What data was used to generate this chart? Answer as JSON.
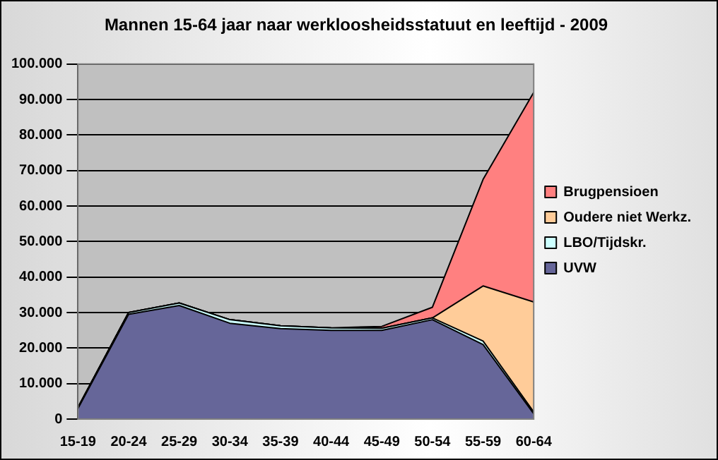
{
  "chart_data": {
    "type": "area",
    "title": "Mannen 15-64 jaar naar werkloosheidsstatuut en leeftijd - 2009",
    "categories": [
      "15-19",
      "20-24",
      "25-29",
      "30-34",
      "35-39",
      "40-44",
      "45-49",
      "50-54",
      "55-59",
      "60-64"
    ],
    "stacked": true,
    "series": [
      {
        "name": "UVW",
        "color": "#666699",
        "values": [
          3000,
          29500,
          32000,
          27000,
          25500,
          25000,
          25000,
          28000,
          21000,
          1500
        ]
      },
      {
        "name": "LBO/Tijdskr.",
        "color": "#ccffff",
        "values": [
          300,
          500,
          700,
          1000,
          800,
          700,
          600,
          500,
          1000,
          500
        ]
      },
      {
        "name": "Oudere niet Werkz.",
        "color": "#ffcc99",
        "values": [
          0,
          0,
          0,
          0,
          0,
          0,
          0,
          0,
          15500,
          31000
        ]
      },
      {
        "name": "Brugpensioen",
        "color": "#ff8080",
        "values": [
          0,
          0,
          0,
          0,
          0,
          0,
          500,
          3000,
          30000,
          59000
        ]
      }
    ],
    "ylim": [
      0,
      100000
    ],
    "yticks": [
      0,
      {
        "value": 10000,
        "label": "10.000"
      },
      {
        "value": 20000,
        "label": "20.000"
      },
      {
        "value": 30000,
        "label": "30.000"
      },
      {
        "value": 40000,
        "label": "40.000"
      },
      {
        "value": 50000,
        "label": "50.000"
      },
      {
        "value": 60000,
        "label": "60.000"
      },
      {
        "value": 70000,
        "label": "70.000"
      },
      {
        "value": 80000,
        "label": "80.000"
      },
      {
        "value": 90000,
        "label": "90.000"
      },
      {
        "value": 100000,
        "label": "100.000"
      }
    ],
    "grid": "y",
    "legend": "right"
  }
}
